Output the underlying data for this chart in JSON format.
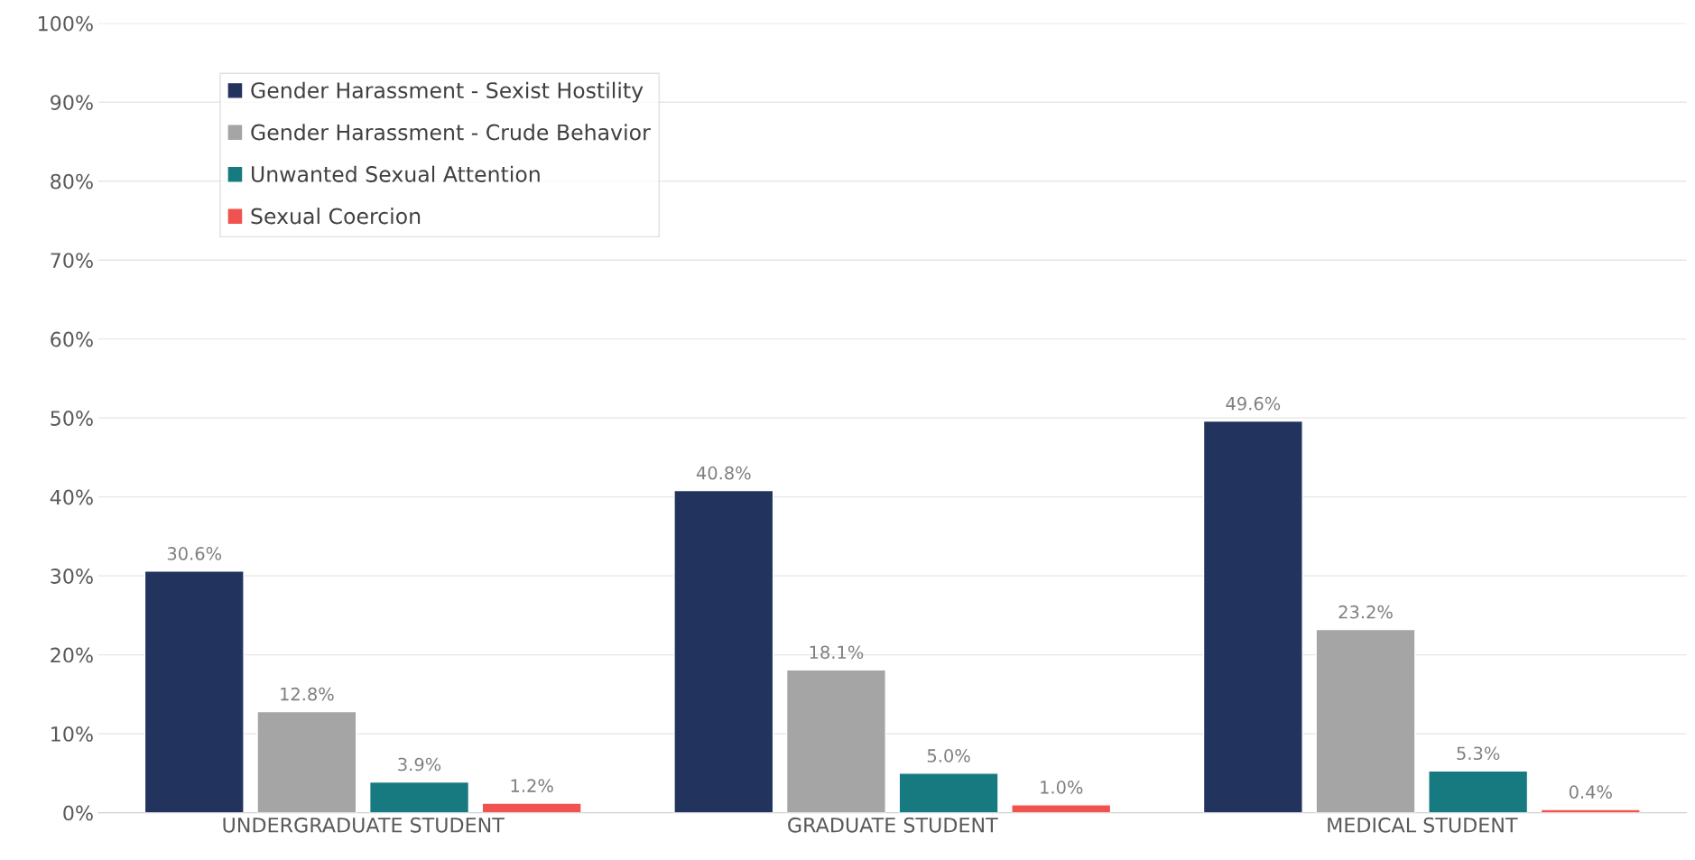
{
  "chart_data": {
    "type": "bar",
    "categories": [
      "UNDERGRADUATE STUDENT",
      "GRADUATE STUDENT",
      "MEDICAL STUDENT"
    ],
    "series": [
      {
        "name": "Gender Harassment - Sexist Hostility",
        "color": "#22345e",
        "values": [
          30.6,
          40.8,
          49.6
        ],
        "value_labels": [
          "30.6%",
          "40.8%",
          "49.6%"
        ]
      },
      {
        "name": "Gender Harassment - Crude Behavior",
        "color": "#a5a5a5",
        "values": [
          12.8,
          18.1,
          23.2
        ],
        "value_labels": [
          "12.8%",
          "18.1%",
          "23.2%"
        ]
      },
      {
        "name": "Unwanted Sexual Attention",
        "color": "#167a80",
        "values": [
          3.9,
          5.0,
          5.3
        ],
        "value_labels": [
          "3.9%",
          "5.0%",
          "5.3%"
        ]
      },
      {
        "name": "Sexual Coercion",
        "color": "#f0534f",
        "values": [
          1.2,
          1.0,
          0.4
        ],
        "value_labels": [
          "1.2%",
          "1.0%",
          "0.4%"
        ]
      }
    ],
    "ylim": [
      0,
      100
    ],
    "yticks": [
      {
        "value": 0,
        "label": "0%"
      },
      {
        "value": 10,
        "label": "10%"
      },
      {
        "value": 20,
        "label": "20%"
      },
      {
        "value": 30,
        "label": "30%"
      },
      {
        "value": 40,
        "label": "40%"
      },
      {
        "value": 50,
        "label": "50%"
      },
      {
        "value": 60,
        "label": "60%"
      },
      {
        "value": 70,
        "label": "70%"
      },
      {
        "value": 80,
        "label": "80%"
      },
      {
        "value": 90,
        "label": "90%"
      },
      {
        "value": 100,
        "label": "100%"
      }
    ],
    "grid": "y",
    "legend": "top left"
  }
}
